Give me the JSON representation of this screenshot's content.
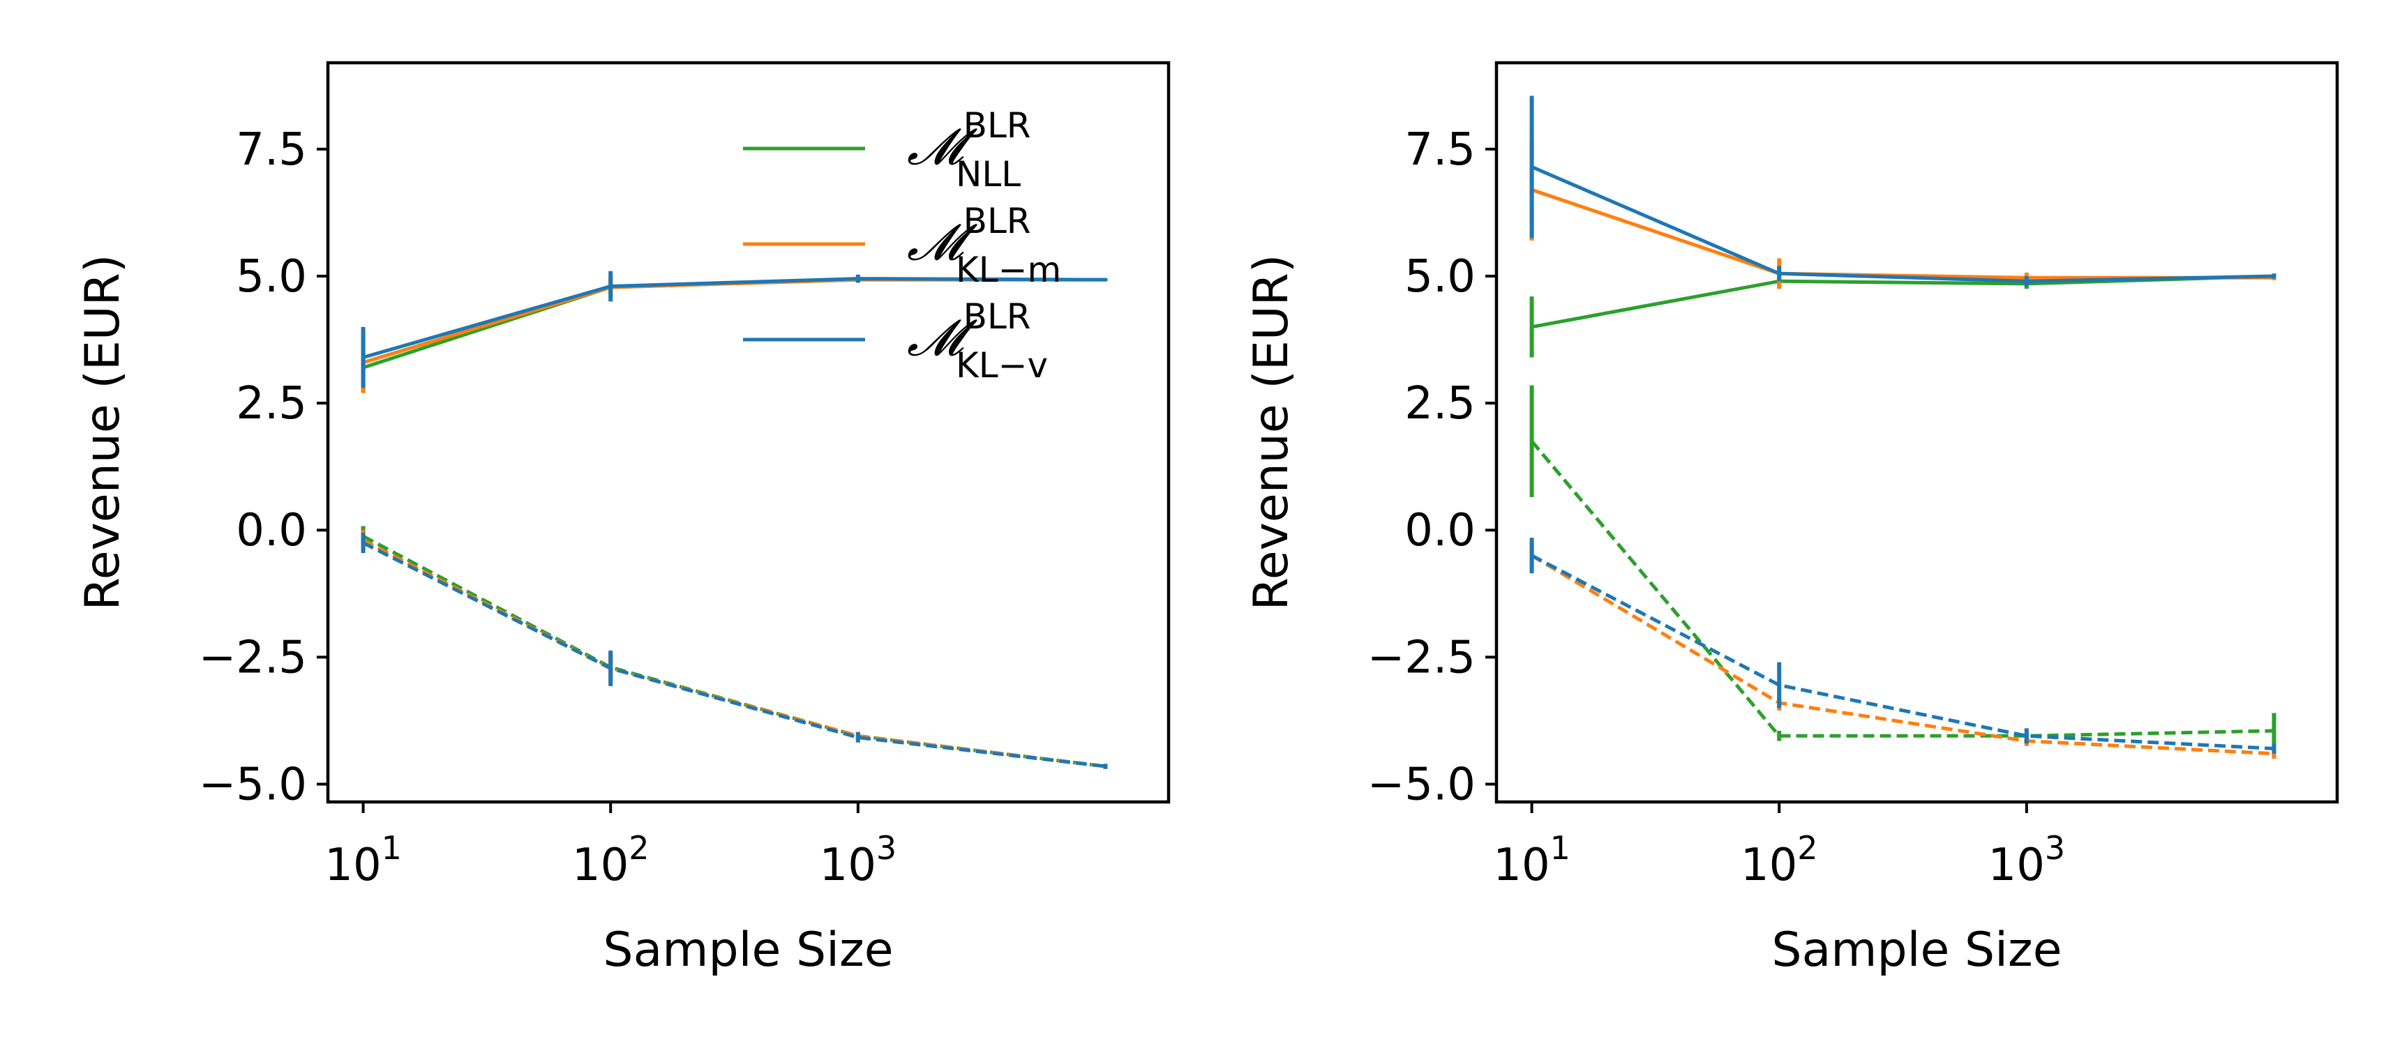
{
  "chart_data": [
    {
      "type": "line",
      "xlabel": "Sample Size",
      "ylabel": "Revenue (EUR)",
      "xscale": "log",
      "xlim": [
        7.2,
        18000
      ],
      "ylim": [
        -5.35,
        9.2
      ],
      "x_ticks": [
        {
          "value": 10,
          "base": "10",
          "exp": "1"
        },
        {
          "value": 100,
          "base": "10",
          "exp": "2"
        },
        {
          "value": 1000,
          "base": "10",
          "exp": "3"
        }
      ],
      "y_ticks": [
        {
          "value": -5.0,
          "label": "−5.0"
        },
        {
          "value": -2.5,
          "label": "−2.5"
        },
        {
          "value": 0.0,
          "label": "0.0"
        },
        {
          "value": 2.5,
          "label": "2.5"
        },
        {
          "value": 5.0,
          "label": "5.0"
        },
        {
          "value": 7.5,
          "label": "7.5"
        }
      ],
      "x": [
        10,
        100,
        1000,
        10000
      ],
      "legend": {
        "position": "upper-right",
        "entries": [
          {
            "symbol": "𝓜",
            "sup": "BLR",
            "sub": "NLL",
            "color": "#2ca02c"
          },
          {
            "symbol": "𝓜",
            "sup": "BLR",
            "sub": "KL−m",
            "color": "#ff7f0e"
          },
          {
            "symbol": "𝓜",
            "sup": "BLR",
            "sub": "KL−v",
            "color": "#1f77b4"
          }
        ]
      },
      "series": [
        {
          "color": "#2ca02c",
          "dash": "solid",
          "values": [
            3.2,
            4.78,
            4.93,
            4.93
          ],
          "err": [
            0.5,
            0.2,
            0.06,
            0.03
          ]
        },
        {
          "color": "#ff7f0e",
          "dash": "solid",
          "values": [
            3.3,
            4.78,
            4.93,
            4.93
          ],
          "err": [
            0.6,
            0.2,
            0.06,
            0.03
          ]
        },
        {
          "color": "#1f77b4",
          "dash": "solid",
          "values": [
            3.4,
            4.8,
            4.95,
            4.93
          ],
          "err": [
            0.6,
            0.3,
            0.08,
            0.03
          ]
        },
        {
          "color": "#2ca02c",
          "dash": "dashed",
          "values": [
            -0.12,
            -2.7,
            -4.05,
            -4.65
          ],
          "err": [
            0.2,
            0.3,
            0.08,
            0.05
          ]
        },
        {
          "color": "#ff7f0e",
          "dash": "dashed",
          "values": [
            -0.2,
            -2.72,
            -4.05,
            -4.65
          ],
          "err": [
            0.2,
            0.3,
            0.08,
            0.05
          ]
        },
        {
          "color": "#1f77b4",
          "dash": "dashed",
          "values": [
            -0.25,
            -2.72,
            -4.08,
            -4.65
          ],
          "err": [
            0.2,
            0.35,
            0.1,
            0.05
          ]
        }
      ]
    },
    {
      "type": "line",
      "xlabel": "Sample Size",
      "ylabel": "Revenue (EUR)",
      "xscale": "log",
      "xlim": [
        7.2,
        18000
      ],
      "ylim": [
        -5.35,
        9.2
      ],
      "x_ticks": [
        {
          "value": 10,
          "base": "10",
          "exp": "1"
        },
        {
          "value": 100,
          "base": "10",
          "exp": "2"
        },
        {
          "value": 1000,
          "base": "10",
          "exp": "3"
        }
      ],
      "y_ticks": [
        {
          "value": -5.0,
          "label": "−5.0"
        },
        {
          "value": -2.5,
          "label": "−2.5"
        },
        {
          "value": 0.0,
          "label": "0.0"
        },
        {
          "value": 2.5,
          "label": "2.5"
        },
        {
          "value": 5.0,
          "label": "5.0"
        },
        {
          "value": 7.5,
          "label": "7.5"
        }
      ],
      "x": [
        10,
        100,
        1000,
        10000
      ],
      "series": [
        {
          "color": "#2ca02c",
          "dash": "solid",
          "values": [
            4.0,
            4.9,
            4.85,
            5.0
          ],
          "err": [
            0.6,
            0.1,
            0.1,
            0.05
          ]
        },
        {
          "color": "#ff7f0e",
          "dash": "solid",
          "values": [
            6.7,
            5.05,
            4.97,
            4.97
          ],
          "err": [
            1.0,
            0.3,
            0.1,
            0.05
          ]
        },
        {
          "color": "#1f77b4",
          "dash": "solid",
          "values": [
            7.15,
            5.05,
            4.9,
            5.0
          ],
          "err": [
            1.4,
            0.15,
            0.1,
            0.05
          ]
        },
        {
          "color": "#2ca02c",
          "dash": "dashed",
          "values": [
            1.75,
            -4.05,
            -4.05,
            -3.95
          ],
          "err": [
            1.1,
            0.1,
            0.1,
            0.35
          ]
        },
        {
          "color": "#ff7f0e",
          "dash": "dashed",
          "values": [
            -0.5,
            -3.4,
            -4.15,
            -4.4
          ],
          "err": [
            0.25,
            0.15,
            0.1,
            0.1
          ]
        },
        {
          "color": "#1f77b4",
          "dash": "dashed",
          "values": [
            -0.5,
            -3.05,
            -4.05,
            -4.3
          ],
          "err": [
            0.35,
            0.45,
            0.15,
            0.1
          ]
        }
      ]
    }
  ]
}
